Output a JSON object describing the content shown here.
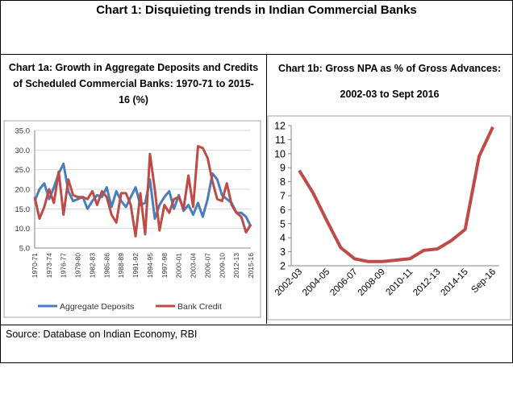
{
  "main_title": "Chart 1: Disquieting trends in Indian Commercial Banks",
  "source": "Source: Database on Indian Economy, RBI",
  "chart_data": [
    {
      "type": "line",
      "title_lines": [
        "Chart 1a: Growth in Aggregate Deposits and Credits",
        "of   Scheduled Commercial Banks: 1970-71 to 2015-",
        "16 (%)"
      ],
      "xlabel": "",
      "ylabel": "",
      "ylim": [
        5,
        35
      ],
      "yticks": [
        "5.0",
        "10.0",
        "15.0",
        "20.0",
        "25.0",
        "30.0",
        "35.0"
      ],
      "x_tick_labels": [
        "1970-71",
        "1973-74",
        "1976-77",
        "1979-80",
        "1982-83",
        "1985-86",
        "1988-89",
        "1991-92",
        "1994-95",
        "1997-98",
        "2000-01",
        "2003-04",
        "2006-07",
        "2009-10",
        "2012-13",
        "2015-16"
      ],
      "grid": true,
      "legend_position": "bottom",
      "series": [
        {
          "name": "Aggregate Deposits",
          "color": "#4A7EBB",
          "values": [
            17.0,
            20.0,
            21.5,
            17.5,
            20.5,
            24.0,
            26.5,
            19.5,
            17.0,
            17.5,
            18.0,
            15.0,
            17.0,
            18.5,
            18.0,
            20.5,
            15.5,
            19.5,
            17.0,
            15.5,
            18.0,
            20.5,
            16.0,
            16.5,
            22.5,
            12.5,
            16.0,
            18.0,
            19.5,
            15.0,
            18.5,
            14.5,
            16.0,
            13.5,
            16.5,
            13.0,
            17.5,
            24.0,
            22.5,
            18.5,
            17.5,
            16.5,
            14.0,
            14.0,
            13.0,
            10.5
          ]
        },
        {
          "name": "Bank Credit",
          "color": "#BE4B48",
          "values": [
            18.0,
            12.5,
            15.5,
            20.0,
            16.5,
            24.5,
            13.5,
            22.5,
            18.5,
            18.0,
            18.0,
            17.5,
            19.5,
            16.0,
            19.5,
            18.0,
            13.5,
            11.5,
            19.0,
            19.0,
            16.0,
            8.0,
            19.0,
            8.5,
            29.0,
            20.0,
            9.5,
            16.0,
            14.0,
            17.5,
            18.0,
            15.0,
            23.5,
            15.5,
            31.0,
            30.5,
            28.0,
            22.0,
            17.5,
            17.0,
            21.5,
            16.0,
            14.0,
            13.0,
            9.0,
            11.0
          ]
        }
      ]
    },
    {
      "type": "line",
      "title_lines": [
        "Chart 1b: Gross NPA as % of Gross Advances:",
        "2002-03 to Sept 2016"
      ],
      "xlabel": "",
      "ylabel": "",
      "ylim": [
        2,
        12
      ],
      "yticks": [
        "2",
        "3",
        "4",
        "5",
        "6",
        "7",
        "8",
        "9",
        "10",
        "11",
        "12"
      ],
      "x_tick_labels": [
        "2002-03",
        "2004-05",
        "2006-07",
        "2008-09",
        "2010-11",
        "2012-13",
        "2014-15",
        "Sep-16"
      ],
      "grid": false,
      "series": [
        {
          "color": "#BE4B48",
          "values": [
            8.8,
            7.2,
            5.2,
            3.3,
            2.5,
            2.3,
            2.3,
            2.4,
            2.5,
            3.1,
            3.2,
            3.8,
            4.6,
            9.8,
            11.9
          ]
        }
      ]
    }
  ]
}
